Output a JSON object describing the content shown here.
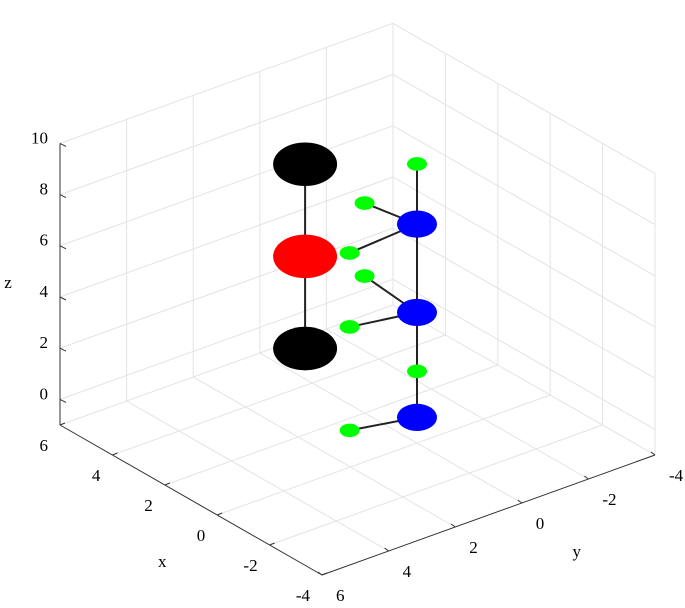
{
  "chart_data": {
    "type": "scatter3d",
    "x": [
      3,
      3,
      3,
      0,
      0,
      0,
      0,
      2,
      1.3,
      2,
      1.3,
      0,
      1.3
    ],
    "y": [
      1,
      1,
      1,
      0,
      0,
      0,
      0,
      0,
      1,
      0,
      1,
      0,
      1
    ],
    "z": [
      8.6,
      5,
      1.4,
      7.55,
      4.1,
      0,
      9.9,
      7.2,
      6.13,
      4.35,
      3.24,
      1.8,
      -0.8
    ],
    "colors": [
      "#000000",
      "#ff0000",
      "#000000",
      "#0000ff",
      "#0000ff",
      "#0000ff",
      "#00ff00",
      "#00ff00",
      "#00ff00",
      "#00ff00",
      "#00ff00",
      "#00ff00",
      "#00ff00"
    ],
    "sizes": [
      32,
      32,
      32,
      20,
      20,
      20,
      10,
      10,
      10,
      10,
      10,
      10,
      10
    ],
    "bonds": [
      [
        0,
        1
      ],
      [
        1,
        2
      ],
      [
        3,
        6
      ],
      [
        3,
        7
      ],
      [
        3,
        8
      ],
      [
        3,
        4
      ],
      [
        4,
        9
      ],
      [
        4,
        10
      ],
      [
        4,
        5
      ],
      [
        5,
        11
      ],
      [
        5,
        12
      ]
    ],
    "xlabel": "x",
    "ylabel": "y",
    "zlabel": "z",
    "xlim": [
      -4,
      6
    ],
    "ylim": [
      -4,
      6
    ],
    "zlim": [
      -1,
      10
    ],
    "xticks": [
      -4,
      -2,
      0,
      2,
      4,
      6
    ],
    "yticks": [
      -4,
      -2,
      0,
      2,
      4,
      6
    ],
    "zticks": [
      0,
      2,
      4,
      6,
      8,
      10
    ],
    "grid": true
  }
}
